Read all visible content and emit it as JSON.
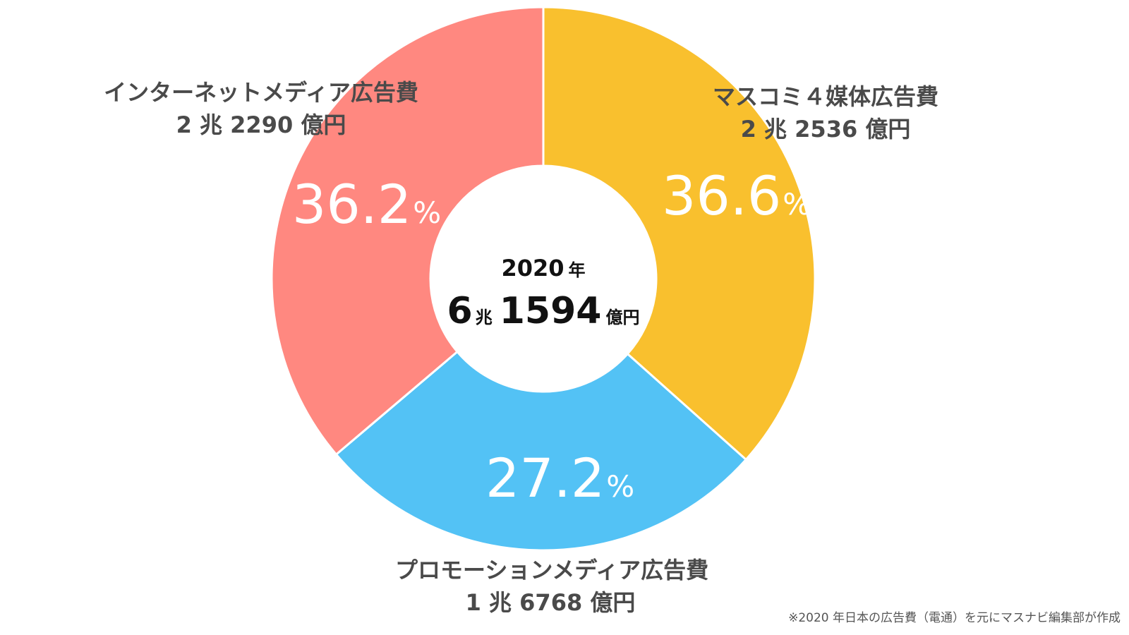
{
  "chart_data": {
    "type": "pie",
    "categories": [
      "マスコミ４媒体広告費",
      "プロモーションメディア広告費",
      "インターネットメディア広告費"
    ],
    "values": [
      36.6,
      27.2,
      36.2
    ],
    "amounts": [
      "2 兆 2536 億円",
      "1 兆 6768 億円",
      "2 兆 2290 億円"
    ],
    "value_labels": [
      "36.6",
      "27.2",
      "36.2"
    ],
    "unit": "%",
    "colors": [
      "#F9C02E",
      "#53C2F5",
      "#FF8880"
    ],
    "donut": true,
    "center": {
      "year": "2020",
      "year_unit": "年",
      "total_cho_value": "6",
      "total_cho_unit": "兆",
      "total_oku_value": "1594",
      "total_oku_unit": "億円"
    }
  },
  "footnote": "※2020 年日本の広告費（電通）を元にマスナビ編集部が作成"
}
